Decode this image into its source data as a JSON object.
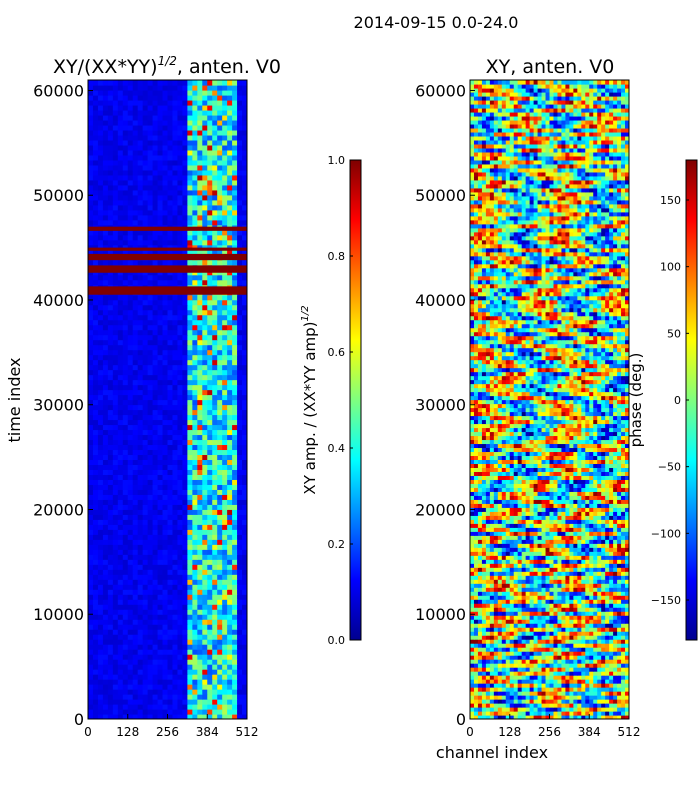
{
  "suptitle": "2014-09-15 0.0-24.0",
  "chart_data": [
    {
      "type": "heatmap",
      "title": "XY/(XX*YY)^{1/2}, anten. V0",
      "title_main": "XY/(XX*YY)",
      "title_sup": "1/2",
      "title_tail": ", anten. V0",
      "xlabel": "",
      "ylabel": "time index",
      "xlim": [
        0,
        512
      ],
      "ylim": [
        0,
        61000
      ],
      "xticks": [
        0,
        128,
        256,
        384,
        512
      ],
      "yticks": [
        0,
        10000,
        20000,
        30000,
        40000,
        50000,
        60000
      ],
      "colorscale": "jet",
      "colorbar": {
        "label": "XY amp. / (XX*YY amp)^{1/2}",
        "label_main": "XY amp. / (XX*YY amp)",
        "label_sup": "1/2",
        "vmin": 0.0,
        "vmax": 1.0,
        "ticks": [
          "0.0",
          "0.2",
          "0.4",
          "0.6",
          "0.8",
          "1.0"
        ]
      },
      "saturated_time_bands": [
        {
          "t0": 40500,
          "t1": 41300,
          "value": 1.0
        },
        {
          "t0": 42600,
          "t1": 43300,
          "value": 1.0
        },
        {
          "t0": 43800,
          "t1": 44400,
          "value": 1.0
        },
        {
          "t0": 44700,
          "t1": 45000,
          "value": 1.0
        },
        {
          "t0": 46600,
          "t1": 47000,
          "value": 1.0
        }
      ],
      "elevated_channel_range": [
        320,
        480
      ]
    },
    {
      "type": "heatmap",
      "title": "XY, anten. V0",
      "xlabel": "channel index",
      "ylabel": "",
      "xlim": [
        0,
        512
      ],
      "ylim": [
        0,
        61000
      ],
      "xticks": [
        0,
        128,
        256,
        384,
        512
      ],
      "yticks": [
        0,
        10000,
        20000,
        30000,
        40000,
        50000,
        60000
      ],
      "colorscale": "jet",
      "colorbar": {
        "label": "phase (deg.)",
        "vmin": -180,
        "vmax": 180,
        "ticks": [
          "−150",
          "−100",
          "−50",
          "0",
          "50",
          "100",
          "150"
        ]
      }
    }
  ]
}
